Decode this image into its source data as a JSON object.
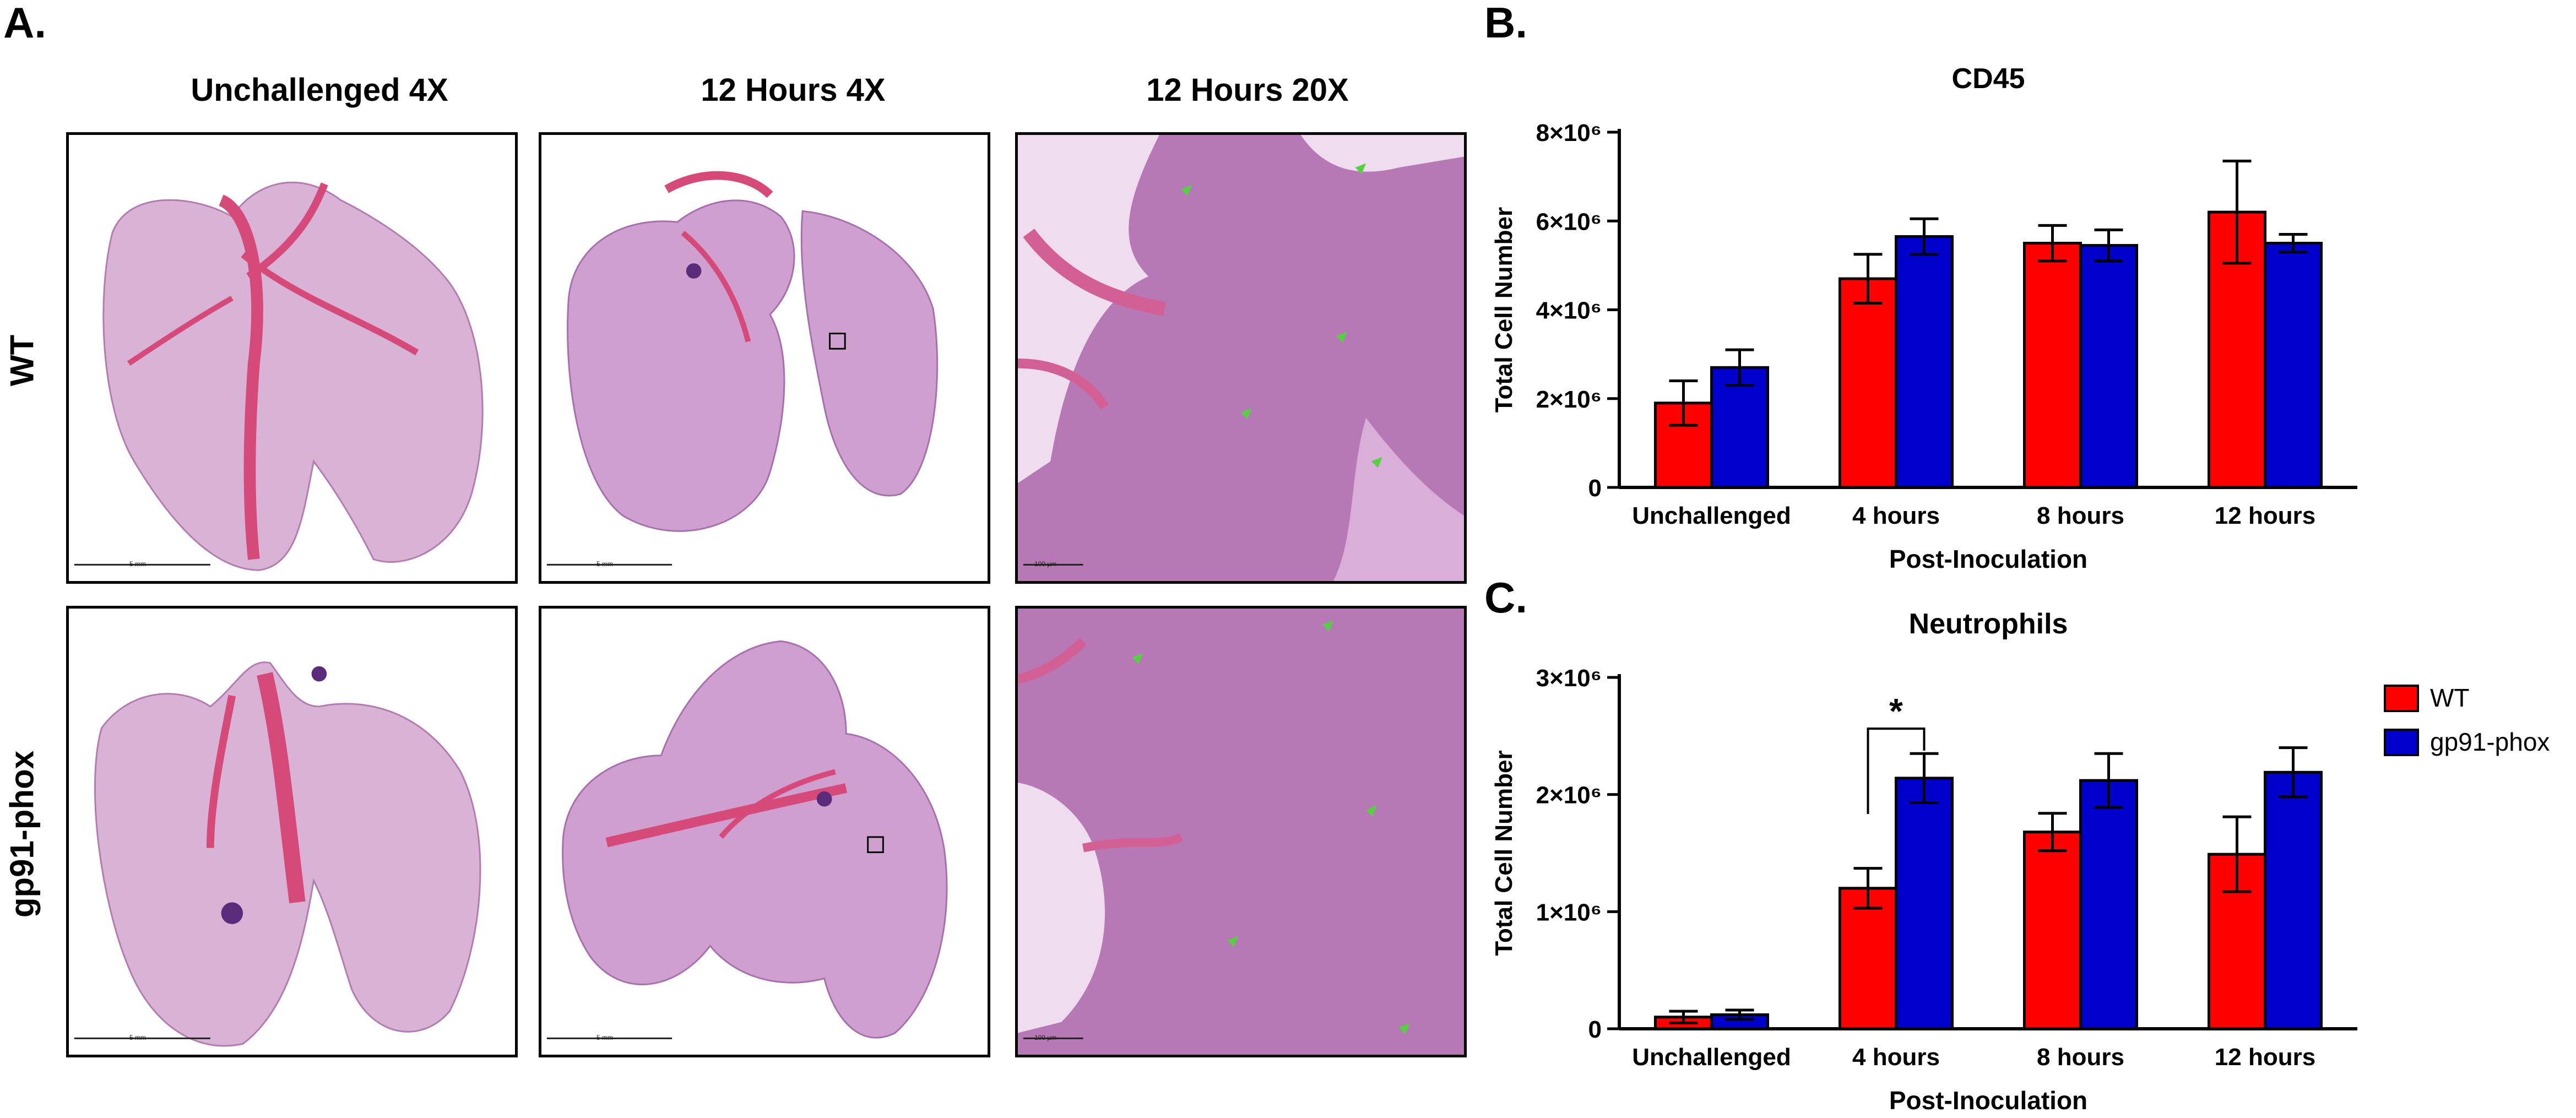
{
  "panel_letters": {
    "a": "A.",
    "b": "B.",
    "c": "C."
  },
  "panel_a": {
    "column_titles": [
      "Unchallenged 4X",
      "12 Hours 4X",
      "12 Hours 20X"
    ],
    "row_labels": [
      "WT",
      "gp91-phox"
    ],
    "scale_bars": {
      "low_mag": "5 mm",
      "high_mag": "100 µm"
    }
  },
  "colors": {
    "wt": "#ff0000",
    "gp91": "#0000cc",
    "tissue": "#c98fc6",
    "tissue_dark": "#7d4a9c",
    "vessel": "#e0567f"
  },
  "legend": [
    {
      "label": "WT",
      "color": "#ff0000"
    },
    {
      "label": "gp91-phox",
      "color": "#0000cc"
    }
  ],
  "chart_data": [
    {
      "type": "bar",
      "panel": "B",
      "title": "CD45",
      "xlabel": "Post-Inoculation",
      "ylabel": "Total Cell Number",
      "categories": [
        "Unchallenged",
        "4 hours",
        "8 hours",
        "12 hours"
      ],
      "ylim": [
        0,
        8000000
      ],
      "yticks": [
        0,
        2000000,
        4000000,
        6000000,
        8000000
      ],
      "ytick_labels": [
        "0",
        "2×10⁶",
        "4×10⁶",
        "6×10⁶",
        "8×10⁶"
      ],
      "series": [
        {
          "name": "WT",
          "values": [
            1900000,
            4700000,
            5500000,
            6200000
          ],
          "errors": [
            500000,
            550000,
            400000,
            1150000
          ]
        },
        {
          "name": "gp91-phox",
          "values": [
            2700000,
            5650000,
            5450000,
            5500000
          ],
          "errors": [
            400000,
            400000,
            350000,
            200000
          ]
        }
      ],
      "annotations": []
    },
    {
      "type": "bar",
      "panel": "C",
      "title": "Neutrophils",
      "xlabel": "Post-Inoculation",
      "ylabel": "Total Cell Number",
      "categories": [
        "Unchallenged",
        "4 hours",
        "8 hours",
        "12 hours"
      ],
      "ylim": [
        0,
        3000000
      ],
      "yticks": [
        0,
        1000000,
        2000000,
        3000000
      ],
      "ytick_labels": [
        "0",
        "1×10⁶",
        "2×10⁶",
        "3×10⁶"
      ],
      "series": [
        {
          "name": "WT",
          "values": [
            100000,
            1200000,
            1680000,
            1490000
          ],
          "errors": [
            50000,
            170000,
            160000,
            320000
          ]
        },
        {
          "name": "gp91-phox",
          "values": [
            120000,
            2140000,
            2120000,
            2190000
          ],
          "errors": [
            40000,
            210000,
            230000,
            210000
          ]
        }
      ],
      "annotations": [
        {
          "text": "*",
          "between": "4 hours"
        }
      ]
    }
  ]
}
